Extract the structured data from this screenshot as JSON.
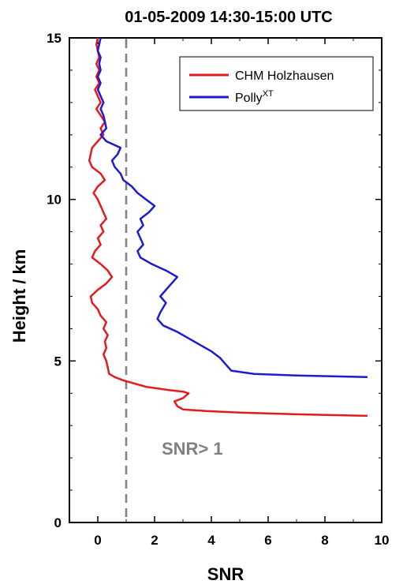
{
  "chart_data": {
    "type": "line",
    "title": "01-05-2009  14:30-15:00 UTC",
    "xlabel": "SNR",
    "ylabel": "Height / km",
    "xlim": [
      -1,
      10
    ],
    "ylim": [
      0,
      15
    ],
    "xticks": [
      0,
      2,
      4,
      6,
      8,
      10
    ],
    "yticks": [
      0,
      5,
      10,
      15
    ],
    "xtick_labels": [
      "0",
      "2",
      "4",
      "6",
      "8",
      "10"
    ],
    "ytick_labels": [
      "0",
      "5",
      "10",
      "15"
    ],
    "grid": false,
    "legend_position": "top-right",
    "series": [
      {
        "name": "CHM Holzhausen",
        "color": "#e41a1c",
        "points": [
          [
            9.5,
            3.3
          ],
          [
            7.0,
            3.35
          ],
          [
            5.0,
            3.4
          ],
          [
            3.8,
            3.45
          ],
          [
            3.0,
            3.5
          ],
          [
            2.8,
            3.6
          ],
          [
            2.7,
            3.75
          ],
          [
            3.0,
            3.85
          ],
          [
            3.2,
            4.0
          ],
          [
            3.0,
            4.05
          ],
          [
            2.5,
            4.1
          ],
          [
            2.1,
            4.15
          ],
          [
            1.7,
            4.2
          ],
          [
            1.3,
            4.3
          ],
          [
            0.9,
            4.4
          ],
          [
            0.6,
            4.5
          ],
          [
            0.4,
            4.6
          ],
          [
            0.35,
            4.8
          ],
          [
            0.3,
            5.0
          ],
          [
            0.2,
            5.2
          ],
          [
            0.3,
            5.4
          ],
          [
            0.25,
            5.6
          ],
          [
            0.35,
            5.8
          ],
          [
            0.2,
            6.0
          ],
          [
            0.3,
            6.2
          ],
          [
            0.1,
            6.4
          ],
          [
            0.0,
            6.6
          ],
          [
            -0.2,
            6.8
          ],
          [
            -0.25,
            7.0
          ],
          [
            0.0,
            7.2
          ],
          [
            0.3,
            7.4
          ],
          [
            0.5,
            7.6
          ],
          [
            0.35,
            7.8
          ],
          [
            0.1,
            8.0
          ],
          [
            -0.2,
            8.2
          ],
          [
            -0.1,
            8.4
          ],
          [
            0.1,
            8.6
          ],
          [
            0.0,
            8.8
          ],
          [
            0.2,
            9.0
          ],
          [
            0.1,
            9.2
          ],
          [
            0.3,
            9.4
          ],
          [
            0.2,
            9.6
          ],
          [
            0.1,
            9.8
          ],
          [
            0.0,
            10.0
          ],
          [
            -0.15,
            10.2
          ],
          [
            0.0,
            10.4
          ],
          [
            0.25,
            10.6
          ],
          [
            0.1,
            10.8
          ],
          [
            -0.2,
            11.0
          ],
          [
            -0.3,
            11.2
          ],
          [
            -0.25,
            11.4
          ],
          [
            -0.2,
            11.6
          ],
          [
            0.0,
            11.8
          ],
          [
            0.2,
            12.0
          ],
          [
            0.1,
            12.2
          ],
          [
            0.25,
            12.4
          ],
          [
            0.1,
            12.6
          ],
          [
            -0.05,
            12.8
          ],
          [
            0.1,
            13.0
          ],
          [
            0.0,
            13.2
          ],
          [
            -0.1,
            13.4
          ],
          [
            0.05,
            13.6
          ],
          [
            -0.05,
            13.8
          ],
          [
            0.05,
            14.0
          ],
          [
            -0.05,
            14.2
          ],
          [
            0.05,
            14.4
          ],
          [
            0.0,
            14.6
          ],
          [
            -0.05,
            14.8
          ],
          [
            0.0,
            15.0
          ]
        ]
      },
      {
        "name": "Polly",
        "name_superscript": "XT",
        "color": "#1c1ccc",
        "points": [
          [
            9.5,
            4.5
          ],
          [
            7.0,
            4.55
          ],
          [
            5.5,
            4.6
          ],
          [
            4.7,
            4.7
          ],
          [
            4.5,
            4.9
          ],
          [
            4.3,
            5.1
          ],
          [
            4.0,
            5.3
          ],
          [
            3.6,
            5.5
          ],
          [
            3.2,
            5.7
          ],
          [
            2.8,
            5.9
          ],
          [
            2.3,
            6.1
          ],
          [
            2.1,
            6.3
          ],
          [
            2.2,
            6.5
          ],
          [
            2.4,
            6.8
          ],
          [
            2.2,
            7.0
          ],
          [
            2.5,
            7.3
          ],
          [
            2.8,
            7.6
          ],
          [
            2.4,
            7.8
          ],
          [
            1.9,
            8.0
          ],
          [
            1.5,
            8.2
          ],
          [
            1.4,
            8.4
          ],
          [
            1.6,
            8.6
          ],
          [
            1.5,
            8.8
          ],
          [
            1.4,
            9.0
          ],
          [
            1.6,
            9.2
          ],
          [
            1.5,
            9.4
          ],
          [
            1.8,
            9.6
          ],
          [
            2.0,
            9.8
          ],
          [
            1.7,
            10.0
          ],
          [
            1.4,
            10.2
          ],
          [
            1.2,
            10.4
          ],
          [
            0.9,
            10.6
          ],
          [
            0.8,
            10.8
          ],
          [
            0.6,
            11.0
          ],
          [
            0.5,
            11.2
          ],
          [
            0.7,
            11.4
          ],
          [
            0.8,
            11.6
          ],
          [
            0.3,
            11.8
          ],
          [
            0.1,
            12.0
          ],
          [
            0.3,
            12.2
          ],
          [
            0.25,
            12.4
          ],
          [
            0.2,
            12.6
          ],
          [
            0.1,
            12.8
          ],
          [
            0.2,
            13.0
          ],
          [
            0.1,
            13.2
          ],
          [
            0.0,
            13.4
          ],
          [
            0.1,
            13.6
          ],
          [
            0.0,
            13.8
          ],
          [
            0.1,
            14.0
          ],
          [
            0.05,
            14.2
          ],
          [
            0.1,
            14.4
          ],
          [
            0.0,
            14.6
          ],
          [
            0.05,
            14.8
          ],
          [
            0.1,
            15.0
          ]
        ]
      }
    ],
    "threshold_line": {
      "x": 1,
      "style": "dashed",
      "color": "#808080",
      "label": "SNR> 1"
    }
  }
}
